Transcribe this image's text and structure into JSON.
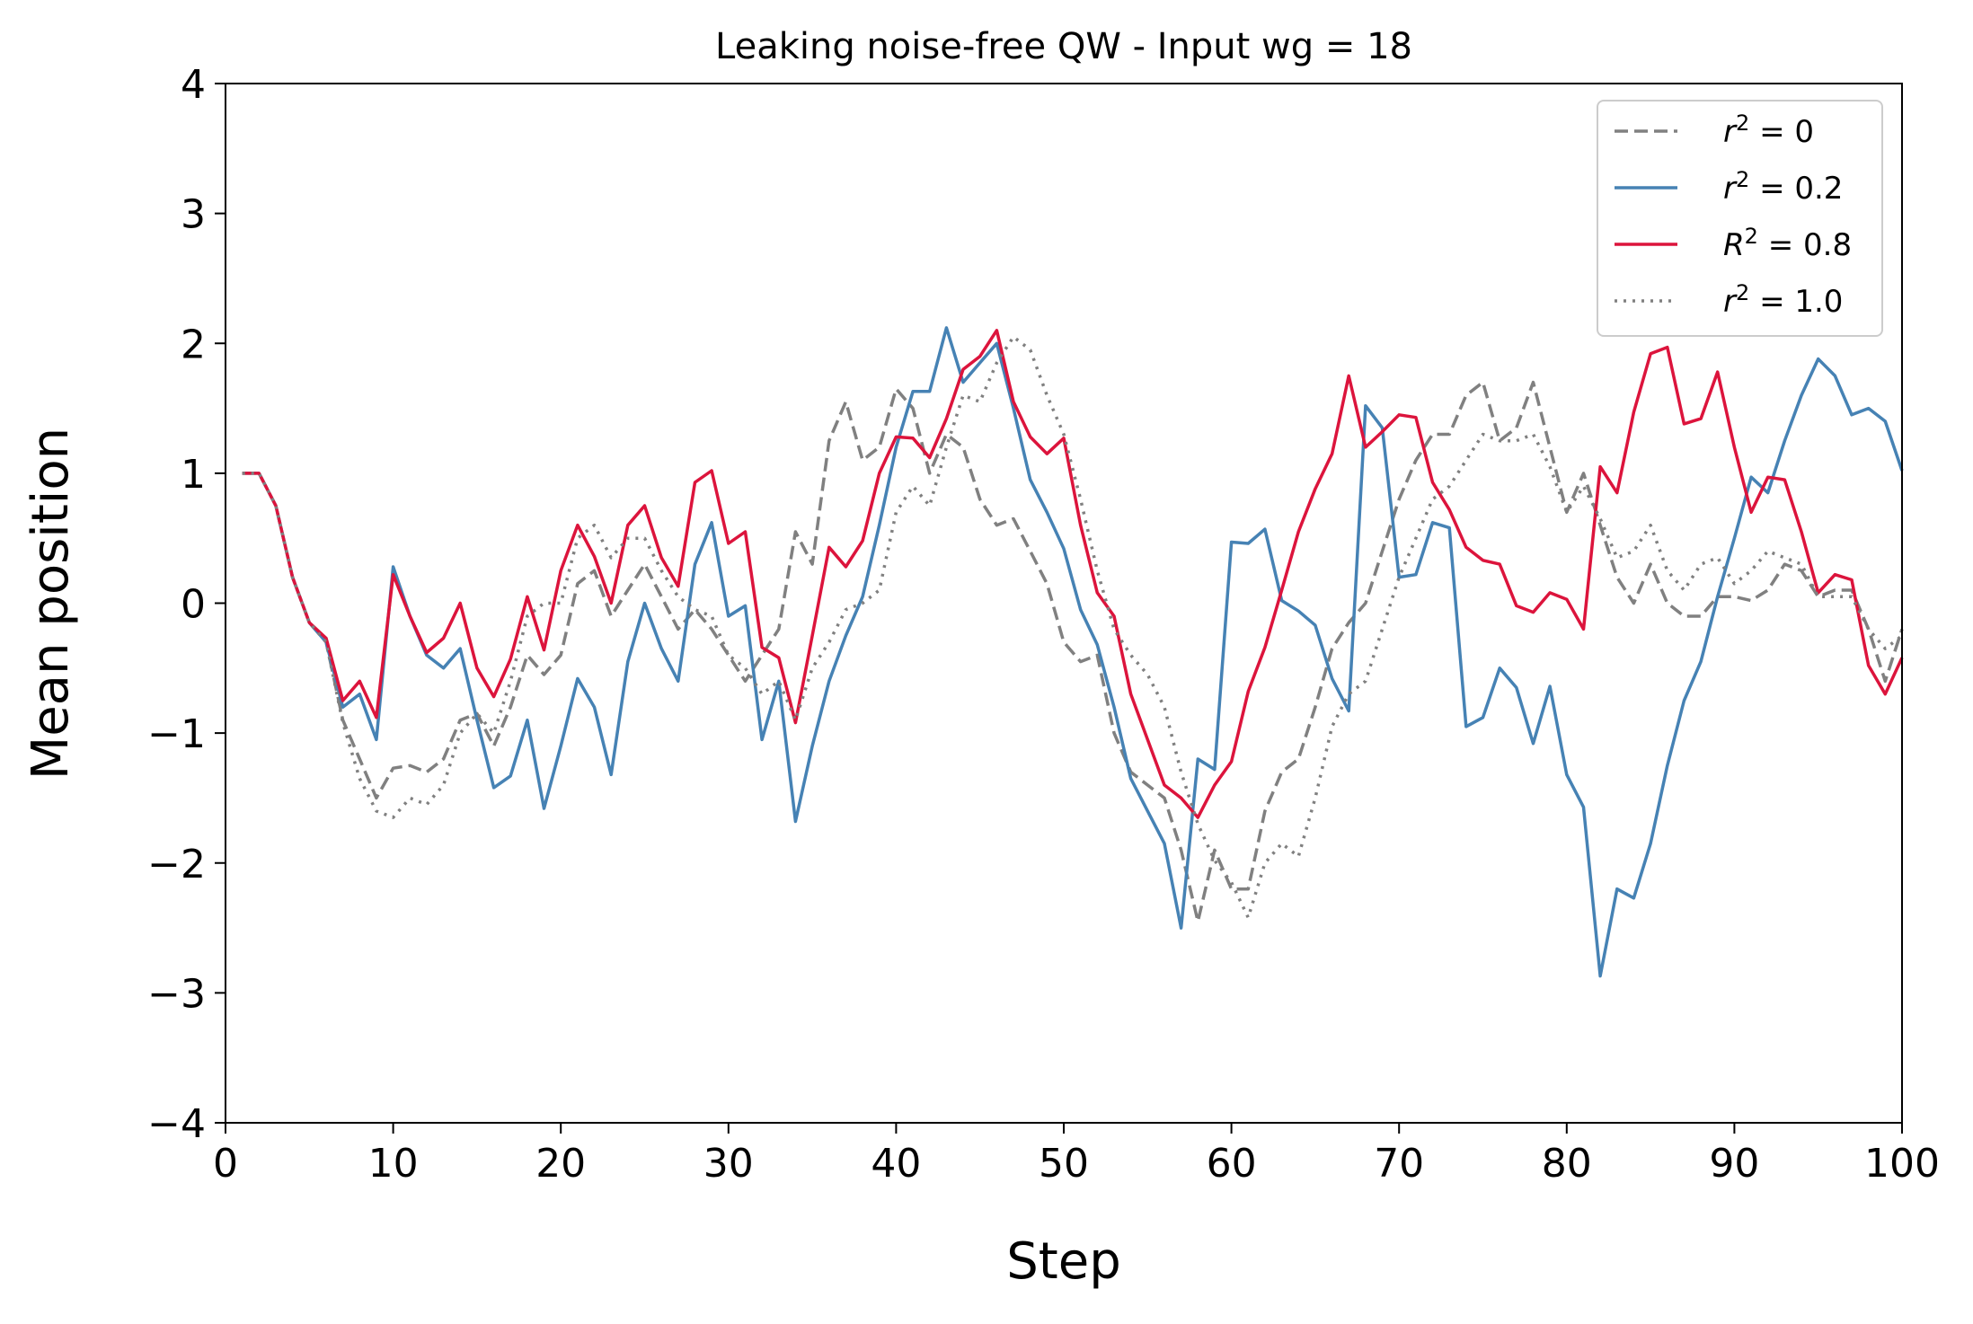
{
  "chart_data": {
    "type": "line",
    "title": "Leaking noise-free QW - Input wg = 18",
    "xlabel": "Step",
    "ylabel": "Mean position",
    "xlim": [
      0,
      100
    ],
    "ylim": [
      -4,
      4
    ],
    "xticks": [
      0,
      10,
      20,
      30,
      40,
      50,
      60,
      70,
      80,
      90,
      100
    ],
    "yticks": [
      -4,
      -3,
      -2,
      -1,
      0,
      1,
      2,
      3,
      4
    ],
    "xtick_labels": [
      "0",
      "10",
      "20",
      "30",
      "40",
      "50",
      "60",
      "70",
      "80",
      "90",
      "100"
    ],
    "ytick_labels": [
      "−4",
      "−3",
      "−2",
      "−1",
      "0",
      "1",
      "2",
      "3",
      "4"
    ],
    "grid": false,
    "legend_position": "top-right",
    "x": [
      1,
      2,
      3,
      4,
      5,
      6,
      7,
      8,
      9,
      10,
      11,
      12,
      13,
      14,
      15,
      16,
      17,
      18,
      19,
      20,
      21,
      22,
      23,
      24,
      25,
      26,
      27,
      28,
      29,
      30,
      31,
      32,
      33,
      34,
      35,
      36,
      37,
      38,
      39,
      40,
      41,
      42,
      43,
      44,
      45,
      46,
      47,
      48,
      49,
      50,
      51,
      52,
      53,
      54,
      55,
      56,
      57,
      58,
      59,
      60,
      61,
      62,
      63,
      64,
      65,
      66,
      67,
      68,
      69,
      70,
      71,
      72,
      73,
      74,
      75,
      76,
      77,
      78,
      79,
      80,
      81,
      82,
      83,
      84,
      85,
      86,
      87,
      88,
      89,
      90,
      91,
      92,
      93,
      94,
      95,
      96,
      97,
      98,
      99,
      100
    ],
    "series": [
      {
        "name": "r² = 0",
        "legend": {
          "base": "r",
          "sup": "2",
          "rest": " = 0"
        },
        "color": "#808080",
        "style": "dashed",
        "values": [
          1.0,
          1.0,
          0.75,
          0.2,
          -0.15,
          -0.3,
          -0.9,
          -1.2,
          -1.5,
          -1.27,
          -1.25,
          -1.3,
          -1.2,
          -0.9,
          -0.85,
          -1.1,
          -0.8,
          -0.4,
          -0.55,
          -0.4,
          0.15,
          0.25,
          -0.1,
          0.1,
          0.3,
          0.05,
          -0.2,
          -0.05,
          -0.2,
          -0.4,
          -0.6,
          -0.4,
          -0.2,
          0.55,
          0.3,
          1.25,
          1.55,
          1.1,
          1.2,
          1.65,
          1.5,
          1.0,
          1.3,
          1.2,
          0.8,
          0.6,
          0.65,
          0.4,
          0.15,
          -0.3,
          -0.45,
          -0.4,
          -1.0,
          -1.3,
          -1.4,
          -1.5,
          -1.9,
          -2.45,
          -1.9,
          -2.2,
          -2.2,
          -1.6,
          -1.3,
          -1.2,
          -0.8,
          -0.35,
          -0.15,
          0.0,
          0.4,
          0.8,
          1.1,
          1.3,
          1.3,
          1.6,
          1.7,
          1.25,
          1.35,
          1.7,
          1.2,
          0.7,
          1.0,
          0.6,
          0.2,
          0.0,
          0.3,
          0.0,
          -0.1,
          -0.1,
          0.05,
          0.05,
          0.02,
          0.1,
          0.3,
          0.25,
          0.05,
          0.1,
          0.1,
          -0.2,
          -0.6,
          -0.2
        ]
      },
      {
        "name": "r² = 0.2",
        "legend": {
          "base": "r",
          "sup": "2",
          "rest": " = 0.2"
        },
        "color": "#4682b4",
        "style": "solid",
        "values": [
          1.0,
          1.0,
          0.75,
          0.2,
          -0.15,
          -0.3,
          -0.8,
          -0.7,
          -1.05,
          0.28,
          -0.1,
          -0.4,
          -0.5,
          -0.35,
          -0.9,
          -1.42,
          -1.33,
          -0.9,
          -1.58,
          -1.1,
          -0.58,
          -0.8,
          -1.32,
          -0.45,
          0.0,
          -0.35,
          -0.6,
          0.3,
          0.62,
          -0.1,
          -0.02,
          -1.05,
          -0.6,
          -1.68,
          -1.1,
          -0.6,
          -0.25,
          0.05,
          0.6,
          1.2,
          1.63,
          1.63,
          2.12,
          1.7,
          1.85,
          2.0,
          1.5,
          0.95,
          0.7,
          0.42,
          -0.05,
          -0.32,
          -0.8,
          -1.35,
          -1.6,
          -1.85,
          -2.5,
          -1.2,
          -1.28,
          0.47,
          0.46,
          0.57,
          0.02,
          -0.06,
          -0.17,
          -0.58,
          -0.83,
          1.52,
          1.35,
          0.2,
          0.22,
          0.62,
          0.58,
          -0.95,
          -0.88,
          -0.5,
          -0.65,
          -1.08,
          -0.64,
          -1.32,
          -1.57,
          -2.87,
          -2.2,
          -2.27,
          -1.85,
          -1.25,
          -0.75,
          -0.45,
          0.05,
          0.5,
          0.97,
          0.85,
          1.25,
          1.6,
          1.88,
          1.75,
          1.45,
          1.5,
          1.4,
          1.02
        ]
      },
      {
        "name": "R² = 0.8",
        "legend": {
          "base": "R",
          "sup": "2",
          "rest": " = 0.8"
        },
        "color": "#dc143c",
        "style": "solid",
        "values": [
          1.0,
          1.0,
          0.75,
          0.2,
          -0.15,
          -0.27,
          -0.75,
          -0.6,
          -0.88,
          0.22,
          -0.1,
          -0.38,
          -0.27,
          0.0,
          -0.5,
          -0.72,
          -0.43,
          0.05,
          -0.36,
          0.25,
          0.6,
          0.36,
          0.0,
          0.6,
          0.75,
          0.35,
          0.13,
          0.93,
          1.02,
          0.46,
          0.55,
          -0.34,
          -0.42,
          -0.92,
          -0.25,
          0.43,
          0.28,
          0.48,
          1.0,
          1.28,
          1.27,
          1.12,
          1.42,
          1.8,
          1.9,
          2.1,
          1.55,
          1.28,
          1.15,
          1.27,
          0.6,
          0.08,
          -0.1,
          -0.7,
          -1.05,
          -1.4,
          -1.5,
          -1.65,
          -1.4,
          -1.22,
          -0.68,
          -0.34,
          0.1,
          0.55,
          0.88,
          1.15,
          1.75,
          1.2,
          1.32,
          1.45,
          1.43,
          0.93,
          0.72,
          0.43,
          0.33,
          0.3,
          -0.02,
          -0.07,
          0.08,
          0.03,
          -0.2,
          1.05,
          0.85,
          1.47,
          1.92,
          1.97,
          1.38,
          1.42,
          1.78,
          1.2,
          0.7,
          0.97,
          0.95,
          0.55,
          0.08,
          0.22,
          0.18,
          -0.48,
          -0.7,
          -0.42
        ]
      },
      {
        "name": "r² = 1.0",
        "legend": {
          "base": "r",
          "sup": "2",
          "rest": " = 1.0"
        },
        "color": "#808080",
        "style": "dotted",
        "values": [
          1.0,
          1.0,
          0.75,
          0.2,
          -0.15,
          -0.3,
          -0.92,
          -1.35,
          -1.6,
          -1.65,
          -1.5,
          -1.55,
          -1.4,
          -1.0,
          -0.85,
          -1.0,
          -0.6,
          -0.1,
          0.0,
          0.0,
          0.5,
          0.6,
          0.35,
          0.5,
          0.5,
          0.25,
          0.05,
          -0.05,
          -0.1,
          -0.4,
          -0.5,
          -0.7,
          -0.6,
          -0.9,
          -0.5,
          -0.3,
          -0.05,
          0.0,
          0.1,
          0.7,
          0.9,
          0.75,
          1.2,
          1.6,
          1.55,
          1.85,
          2.05,
          1.95,
          1.6,
          1.3,
          0.8,
          0.25,
          -0.2,
          -0.4,
          -0.55,
          -0.8,
          -1.3,
          -1.7,
          -1.98,
          -2.15,
          -2.42,
          -2.0,
          -1.85,
          -1.95,
          -1.5,
          -0.95,
          -0.7,
          -0.6,
          -0.2,
          0.2,
          0.5,
          0.8,
          0.9,
          1.1,
          1.3,
          1.25,
          1.25,
          1.3,
          1.05,
          0.7,
          0.9,
          0.65,
          0.35,
          0.4,
          0.6,
          0.25,
          0.1,
          0.3,
          0.35,
          0.15,
          0.25,
          0.4,
          0.35,
          0.3,
          0.05,
          0.05,
          0.05,
          -0.2,
          -0.35,
          -0.25
        ]
      }
    ]
  }
}
